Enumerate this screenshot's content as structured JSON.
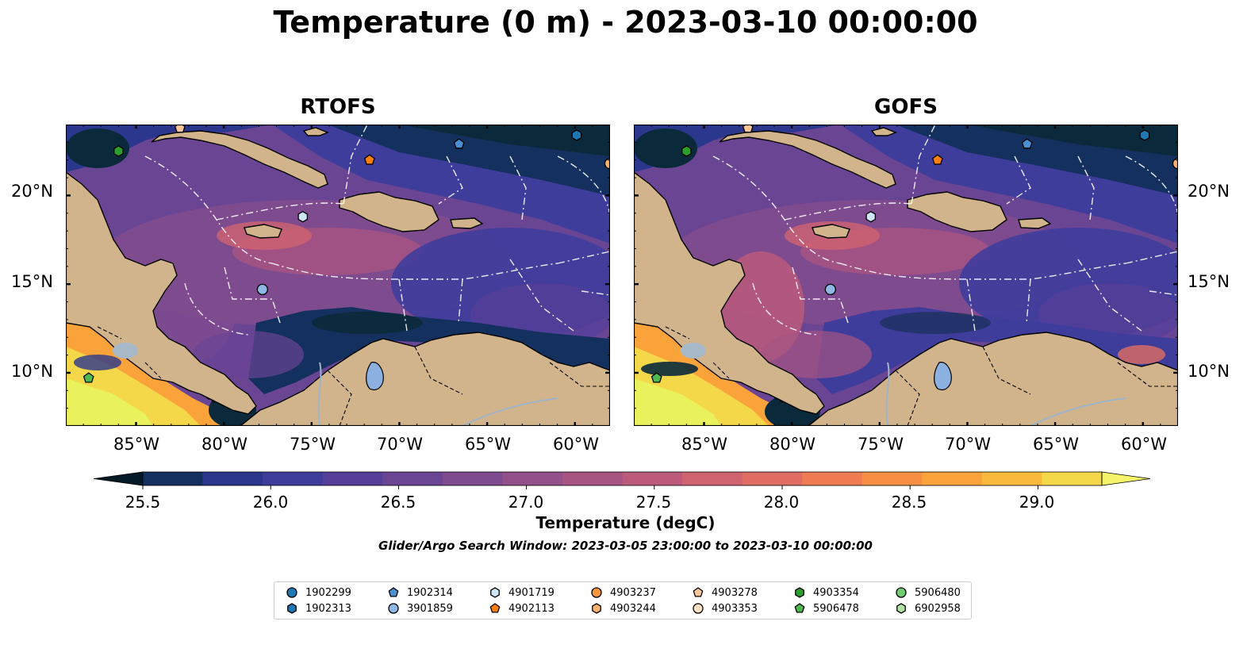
{
  "title": "Temperature (0 m) - 2023-03-10 00:00:00",
  "panels": [
    {
      "title": "RTOFS",
      "variant": "rtofs"
    },
    {
      "title": "GOFS",
      "variant": "gofs"
    }
  ],
  "axes": {
    "lat_labels": [
      "20°N",
      "15°N",
      "10°N"
    ],
    "lon_labels": [
      "85°W",
      "80°W",
      "75°W",
      "70°W",
      "65°W",
      "60°W"
    ],
    "lat_range": [
      7,
      24
    ],
    "lon_range": [
      -89,
      -58
    ]
  },
  "colorbar": {
    "label": "Temperature (degC)",
    "range": [
      25.5,
      29.25
    ],
    "extend": "both",
    "ticks": [
      "25.5",
      "26.0",
      "26.5",
      "27.0",
      "27.5",
      "28.0",
      "28.5",
      "29.0"
    ],
    "colors": [
      "#0a2a3b",
      "#14305e",
      "#2a378c",
      "#3f3d9c",
      "#553f99",
      "#6a4594",
      "#7e4b8f",
      "#93508a",
      "#a75483",
      "#bb5a7b",
      "#cf6370",
      "#e06d62",
      "#ee7b52",
      "#f68e43",
      "#faa33a",
      "#f9ba3c",
      "#f4d84a",
      "#e9f25d"
    ],
    "under_color": "#031a26",
    "over_color": "#f4f36a"
  },
  "subtitle": "Glider/Argo Search Window: 2023-03-05 23:00:00 to 2023-03-10 00:00:00",
  "legend": [
    {
      "label": "1902299",
      "marker": "circle",
      "color": "#1f77b4"
    },
    {
      "label": "1902313",
      "marker": "hexagon",
      "color": "#1f77b4"
    },
    {
      "label": "1902314",
      "marker": "pentagon",
      "color": "#4a90d0"
    },
    {
      "label": "3901859",
      "marker": "circle",
      "color": "#8fb8e6"
    },
    {
      "label": "4901719",
      "marker": "hexagon",
      "color": "#cfe6f7"
    },
    {
      "label": "4902113",
      "marker": "pentagon",
      "color": "#ff7f0e"
    },
    {
      "label": "4903237",
      "marker": "circle",
      "color": "#f7963c"
    },
    {
      "label": "4903244",
      "marker": "hexagon",
      "color": "#fdb272"
    },
    {
      "label": "4903278",
      "marker": "pentagon",
      "color": "#fcc59a"
    },
    {
      "label": "4903353",
      "marker": "circle",
      "color": "#fde2c6"
    },
    {
      "label": "4903354",
      "marker": "hexagon",
      "color": "#2ca02c"
    },
    {
      "label": "5906478",
      "marker": "pentagon",
      "color": "#4fb84f"
    },
    {
      "label": "5906480",
      "marker": "circle",
      "color": "#72cc72"
    },
    {
      "label": "6902958",
      "marker": "hexagon",
      "color": "#b2e3a8"
    }
  ],
  "floats": [
    {
      "lon": -86.0,
      "lat": 22.5,
      "marker": "hexagon",
      "color": "#2ca02c"
    },
    {
      "lon": -82.5,
      "lat": 23.8,
      "marker": "pentagon",
      "color": "#fcc59a"
    },
    {
      "lon": -71.7,
      "lat": 22.0,
      "marker": "pentagon",
      "color": "#ff7f0e"
    },
    {
      "lon": -66.6,
      "lat": 22.9,
      "marker": "pentagon",
      "color": "#4a90d0"
    },
    {
      "lon": -59.9,
      "lat": 23.4,
      "marker": "hexagon",
      "color": "#1f77b4"
    },
    {
      "lon": -58.0,
      "lat": 21.8,
      "marker": "circle",
      "color": "#fdb272"
    },
    {
      "lon": -75.5,
      "lat": 18.8,
      "marker": "hexagon",
      "color": "#cfe6f7"
    },
    {
      "lon": -77.8,
      "lat": 14.7,
      "marker": "circle",
      "color": "#8fb8e6"
    },
    {
      "lon": -87.7,
      "lat": 9.7,
      "marker": "pentagon",
      "color": "#4fb84f"
    }
  ]
}
